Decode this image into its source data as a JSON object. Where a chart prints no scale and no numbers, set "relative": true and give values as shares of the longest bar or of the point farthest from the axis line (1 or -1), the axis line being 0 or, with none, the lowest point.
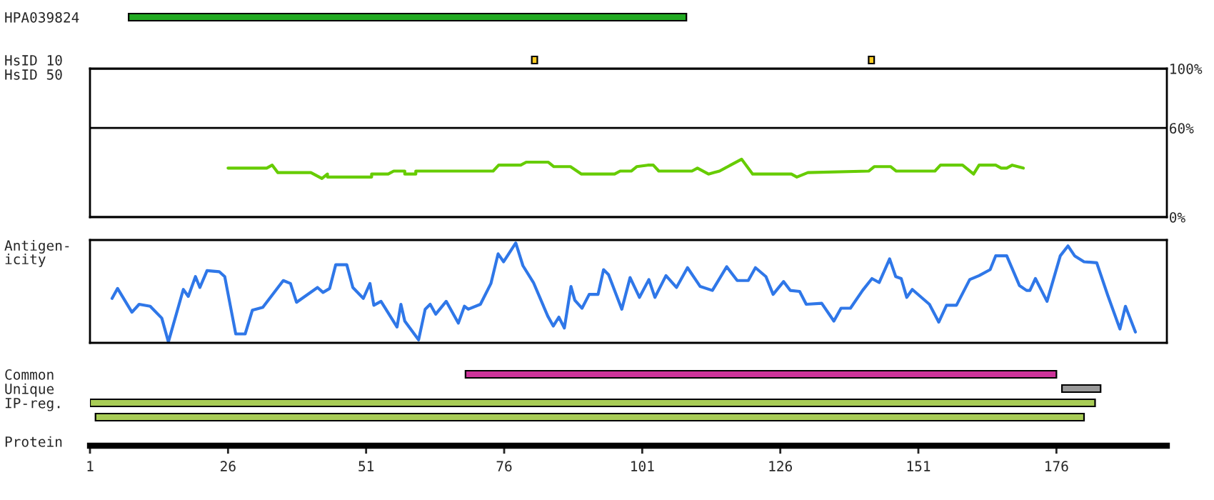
{
  "chart_data": [
    {
      "type": "bar",
      "orientation": "horizontal",
      "categories": [
        "HPA039824"
      ],
      "values": [
        101
      ],
      "base": [
        8
      ],
      "color": "#22aa22",
      "xlim": [
        1,
        196
      ],
      "tick_labels": "y"
    },
    {
      "type": "bar",
      "orientation": "horizontal",
      "categories": [
        "HsID 10",
        "HsID 50"
      ],
      "series": [
        {
          "color": "#ffcc22",
          "values": [
            1,
            null
          ],
          "base": [
            81,
            null
          ]
        },
        {
          "color": "#ffcc22",
          "values": [
            1,
            null
          ],
          "base": [
            142,
            null
          ]
        }
      ],
      "xlim": [
        1,
        196
      ],
      "tick_labels": "y"
    },
    {
      "type": "line",
      "x": [
        26,
        33,
        34,
        35,
        41,
        43,
        44,
        44,
        52,
        52,
        55,
        56,
        58,
        58,
        60,
        60,
        74,
        75,
        79,
        80,
        84,
        85,
        88,
        90,
        96,
        97,
        99,
        100,
        102,
        103,
        104,
        110,
        111,
        113,
        114,
        115,
        117,
        119,
        119,
        121,
        128,
        129,
        131,
        142,
        143,
        146,
        147,
        154,
        155,
        159,
        161,
        162,
        165,
        166,
        167,
        168,
        170
      ],
      "values": [
        33,
        33,
        35,
        30,
        30,
        26,
        29,
        27,
        27,
        29,
        29,
        31,
        31,
        29,
        29,
        31,
        31,
        35,
        35,
        37,
        37,
        34,
        34,
        29,
        29,
        31,
        31,
        34,
        35,
        35,
        31,
        31,
        33,
        29,
        30,
        31,
        35,
        39,
        39,
        29,
        29,
        27,
        30,
        31,
        34,
        34,
        31,
        31,
        35,
        35,
        29,
        35,
        35,
        33,
        33,
        35,
        33
      ],
      "color": "#66cc00",
      "ylim": [
        0,
        100
      ],
      "yticks": [
        {
          "value": 0,
          "label": "0%"
        },
        {
          "value": 60,
          "label": "60%"
        },
        {
          "value": 100,
          "label": "100%"
        }
      ],
      "grid": "y",
      "xlim": [
        1,
        196
      ],
      "tick_labels": "y"
    },
    {
      "type": "line",
      "relative": true,
      "ylabel": "Antigen-\nicity",
      "x": [
        5,
        6,
        8.6,
        9.9,
        11.9,
        14,
        15.2,
        17.9,
        18.8,
        20.1,
        20.9,
        22.2,
        24.4,
        25.4,
        27.4,
        29.1,
        30.4,
        32.3,
        36,
        37.3,
        38.4,
        42.2,
        43.2,
        44.4,
        45.5,
        47.5,
        48.6,
        50.5,
        51.7,
        52.4,
        53.7,
        56.6,
        57.3,
        58,
        60.5,
        61.7,
        62.6,
        63.6,
        65.5,
        67.7,
        68.8,
        69.5,
        71.7,
        73.6,
        74.9,
        75.9,
        78.1,
        79.4,
        81.3,
        83.9,
        84.9,
        85.9,
        86.9,
        88.1,
        88.8,
        90.1,
        91.4,
        93,
        94,
        94.9,
        97.3,
        98.8,
        100.5,
        102.2,
        103.3,
        105.3,
        107.2,
        109.2,
        111.5,
        113.7,
        116.3,
        118.2,
        120.2,
        121.5,
        123.4,
        124.7,
        126.6,
        127.8,
        129.5,
        130.7,
        133.5,
        135.7,
        137,
        138.7,
        140.9,
        142.6,
        143.9,
        145.8,
        146.9,
        147.9,
        148.9,
        149.9,
        153,
        154.7,
        156.1,
        157.9,
        160.3,
        162,
        164,
        165,
        167,
        169.3,
        170.6,
        171.2,
        172.2,
        174.3,
        176.7,
        178.1,
        179.3,
        181,
        183.3,
        185.3,
        187.5,
        188.5,
        190.3
      ],
      "values": [
        0.44,
        0.54,
        0.3,
        0.38,
        0.36,
        0.24,
        0,
        0.53,
        0.46,
        0.66,
        0.55,
        0.72,
        0.71,
        0.66,
        0.08,
        0.08,
        0.32,
        0.35,
        0.62,
        0.59,
        0.4,
        0.55,
        0.5,
        0.54,
        0.78,
        0.78,
        0.55,
        0.44,
        0.59,
        0.37,
        0.41,
        0.15,
        0.38,
        0.21,
        0.02,
        0.33,
        0.38,
        0.28,
        0.41,
        0.19,
        0.36,
        0.33,
        0.38,
        0.59,
        0.89,
        0.81,
        1.0,
        0.77,
        0.6,
        0.26,
        0.16,
        0.25,
        0.14,
        0.56,
        0.42,
        0.34,
        0.48,
        0.48,
        0.73,
        0.68,
        0.33,
        0.65,
        0.45,
        0.63,
        0.45,
        0.67,
        0.55,
        0.75,
        0.56,
        0.52,
        0.76,
        0.62,
        0.62,
        0.75,
        0.66,
        0.48,
        0.61,
        0.52,
        0.51,
        0.38,
        0.39,
        0.21,
        0.34,
        0.34,
        0.52,
        0.64,
        0.6,
        0.84,
        0.66,
        0.64,
        0.45,
        0.53,
        0.38,
        0.2,
        0.37,
        0.37,
        0.63,
        0.67,
        0.73,
        0.87,
        0.87,
        0.57,
        0.52,
        0.52,
        0.64,
        0.41,
        0.87,
        0.97,
        0.87,
        0.81,
        0.8,
        0.47,
        0.13,
        0.36,
        0.1
      ],
      "color": "#2f77e8",
      "xlim": [
        1,
        196
      ],
      "tick_labels": false
    },
    {
      "type": "bar",
      "orientation": "horizontal",
      "categories": [
        "Common",
        "Unique",
        "IP-reg.",
        null
      ],
      "values": [
        107,
        7,
        182,
        179
      ],
      "base": [
        69,
        177,
        1,
        2
      ],
      "colors": [
        "#cc3399",
        "#999999",
        "#a8cc55",
        "#a8cc55"
      ],
      "xlabel": "Protein",
      "xlim": [
        1,
        196
      ],
      "xticks": [
        1,
        26,
        51,
        76,
        101,
        126,
        151,
        176
      ]
    }
  ]
}
